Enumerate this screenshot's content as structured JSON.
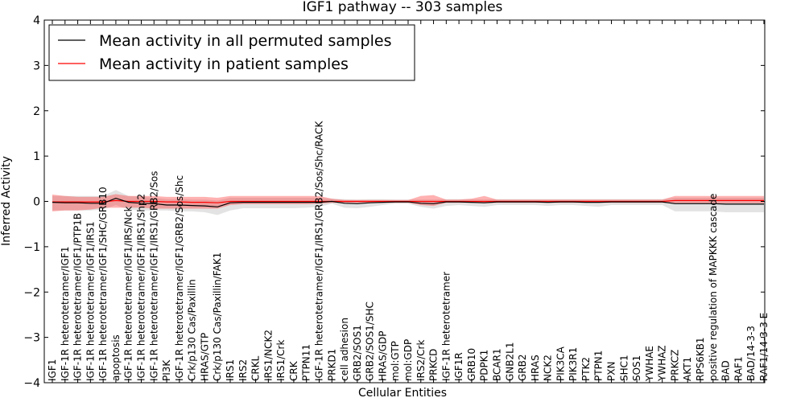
{
  "chart_data": {
    "type": "line",
    "title": "IGF1 pathway -- 303 samples",
    "xlabel": "Cellular Entities",
    "ylabel": "Inferred Activity",
    "ylim": [
      -4,
      4
    ],
    "yticks": [
      -4,
      -3,
      -2,
      -1,
      0,
      1,
      2,
      3,
      4
    ],
    "ytick_labels": [
      "−4",
      "−3",
      "−2",
      "−1",
      "0",
      "1",
      "2",
      "3",
      "4"
    ],
    "grid": false,
    "legend_position": "top-left",
    "categories": [
      "IGF1",
      "IGF-1R heterotetramer/IGF1",
      "IGF-1R heterotetramer/IGF1/PTP1B",
      "IGF-1R heterotetramer/IGF1/IRS1",
      "IGF-1R heterotetramer/IGF1/SHC/GRB10",
      "apoptosis",
      "IGF-1R heterotetramer/IGF1/IRS/Nck",
      "IGF-1R heterotetramer/IGF1/IRS1/Shp2",
      "IGF-1R heterotetramer/IGF1/IRS1/GRB2/Sos",
      "PI3K",
      "IGF-1R heterotetramer/IGF1/GRB2/Sos/Shc",
      "Crk/p130 Cas/Paxillin",
      "HRAS/GTP",
      "Crk/p130 Cas/Paxillin/FAK1",
      "IRS1",
      "IRS2",
      "CRKL",
      "IRS1/NCK2",
      "IRS1/Crk",
      "CRK",
      "PTPN11",
      "IGF-1R heterotetramer/IGF1/IRS1/GRB2/Sos/Shc/RACK",
      "PRKD1",
      "cell adhesion",
      "GRB2/SOS1",
      "GRB2/SOS1/SHC",
      "HRAS/GDP",
      "mol:GTP",
      "mol:GDP",
      "IRS2/Crk",
      "PRKCD",
      "IGF-1R heterotetramer",
      "IGF1R",
      "GRB10",
      "PDPK1",
      "BCAR1",
      "GNB2L1",
      "GRB2",
      "HRAS",
      "NCK2",
      "PIK3CA",
      "PIK3R1",
      "PTK2",
      "PTPN1",
      "PXN",
      "SHC1",
      "SOS1",
      "YWHAE",
      "YWHAZ",
      "PRKCZ",
      "AKT1",
      "RPS6KB1",
      "positive regulation of MAPKKK cascade",
      "BAD",
      "RAF1",
      "BAD/14-3-3",
      "RAF1/14-3-3 E"
    ],
    "series": [
      {
        "name": "Mean activity in all permuted samples",
        "color": "#000000",
        "values": [
          -0.02,
          -0.03,
          -0.03,
          -0.04,
          -0.04,
          0.07,
          -0.02,
          -0.04,
          -0.05,
          -0.08,
          -0.08,
          -0.09,
          -0.1,
          -0.12,
          -0.03,
          -0.02,
          -0.02,
          -0.02,
          -0.02,
          -0.02,
          -0.02,
          -0.02,
          0.0,
          -0.04,
          -0.05,
          -0.03,
          -0.02,
          -0.01,
          -0.01,
          -0.04,
          -0.05,
          -0.01,
          -0.01,
          -0.02,
          -0.03,
          -0.01,
          -0.01,
          -0.01,
          -0.01,
          -0.02,
          -0.01,
          -0.01,
          -0.02,
          -0.02,
          -0.01,
          -0.01,
          -0.01,
          -0.01,
          -0.01,
          -0.05,
          -0.05,
          -0.05,
          -0.05,
          -0.06,
          -0.06,
          -0.06,
          -0.06
        ],
        "band_low": [
          -0.2,
          -0.2,
          -0.2,
          -0.2,
          -0.18,
          -0.08,
          -0.18,
          -0.2,
          -0.2,
          -0.2,
          -0.22,
          -0.22,
          -0.24,
          -0.3,
          -0.2,
          -0.15,
          -0.15,
          -0.15,
          -0.15,
          -0.15,
          -0.14,
          -0.12,
          -0.05,
          -0.14,
          -0.15,
          -0.12,
          -0.08,
          -0.05,
          -0.05,
          -0.12,
          -0.16,
          -0.1,
          -0.08,
          -0.1,
          -0.12,
          -0.08,
          -0.08,
          -0.08,
          -0.08,
          -0.1,
          -0.08,
          -0.08,
          -0.1,
          -0.12,
          -0.08,
          -0.08,
          -0.08,
          -0.08,
          -0.08,
          -0.22,
          -0.22,
          -0.22,
          -0.22,
          -0.24,
          -0.24,
          -0.24,
          -0.24
        ],
        "band_high": [
          0.12,
          0.12,
          0.12,
          0.12,
          0.12,
          0.25,
          0.12,
          0.1,
          0.08,
          0.05,
          0.05,
          0.04,
          0.04,
          0.02,
          0.08,
          0.08,
          0.08,
          0.08,
          0.08,
          0.08,
          0.08,
          0.08,
          0.06,
          0.05,
          0.04,
          0.05,
          0.05,
          0.04,
          0.04,
          0.04,
          0.04,
          0.05,
          0.05,
          0.05,
          0.04,
          0.05,
          0.05,
          0.05,
          0.05,
          0.05,
          0.05,
          0.05,
          0.05,
          0.05,
          0.05,
          0.05,
          0.05,
          0.05,
          0.05,
          0.08,
          0.08,
          0.08,
          0.08,
          0.08,
          0.08,
          0.08,
          0.08
        ]
      },
      {
        "name": "Mean activity in patient samples",
        "color": "#ff0000",
        "values": [
          -0.01,
          -0.01,
          -0.01,
          -0.01,
          -0.01,
          0.02,
          0.0,
          0.0,
          0.0,
          -0.01,
          -0.01,
          -0.02,
          -0.02,
          -0.03,
          0.0,
          0.0,
          0.0,
          0.0,
          0.0,
          0.0,
          0.0,
          0.0,
          0.0,
          0.0,
          0.0,
          0.0,
          0.0,
          0.0,
          0.0,
          0.0,
          0.0,
          0.0,
          0.0,
          0.0,
          0.0,
          0.0,
          0.0,
          0.0,
          0.0,
          0.0,
          0.0,
          0.0,
          0.0,
          0.0,
          0.0,
          0.0,
          0.0,
          0.0,
          0.0,
          0.02,
          0.02,
          0.02,
          0.02,
          0.02,
          0.02,
          0.02,
          0.02
        ],
        "band_low": [
          -0.22,
          -0.2,
          -0.2,
          -0.18,
          -0.14,
          -0.14,
          -0.14,
          -0.14,
          -0.16,
          -0.16,
          -0.16,
          -0.16,
          -0.16,
          -0.16,
          -0.08,
          -0.06,
          -0.06,
          -0.06,
          -0.06,
          -0.06,
          -0.06,
          -0.05,
          -0.03,
          -0.03,
          -0.03,
          -0.03,
          -0.03,
          -0.03,
          -0.03,
          -0.08,
          -0.1,
          -0.03,
          -0.03,
          -0.03,
          -0.04,
          -0.03,
          -0.03,
          -0.03,
          -0.03,
          -0.03,
          -0.03,
          -0.03,
          -0.03,
          -0.03,
          -0.03,
          -0.03,
          -0.03,
          -0.03,
          -0.03,
          -0.04,
          -0.04,
          -0.04,
          -0.04,
          -0.04,
          -0.04,
          -0.04,
          -0.04
        ],
        "band_high": [
          0.15,
          0.12,
          0.1,
          0.1,
          0.1,
          0.16,
          0.12,
          0.12,
          0.12,
          0.1,
          0.1,
          0.1,
          0.1,
          0.08,
          0.12,
          0.12,
          0.12,
          0.12,
          0.12,
          0.12,
          0.12,
          0.12,
          0.06,
          0.03,
          0.03,
          0.03,
          0.03,
          0.03,
          0.03,
          0.12,
          0.14,
          0.04,
          0.04,
          0.06,
          0.12,
          0.04,
          0.04,
          0.04,
          0.04,
          0.04,
          0.04,
          0.04,
          0.04,
          0.04,
          0.04,
          0.04,
          0.04,
          0.04,
          0.04,
          0.12,
          0.12,
          0.12,
          0.12,
          0.12,
          0.12,
          0.12,
          0.12
        ]
      }
    ]
  }
}
